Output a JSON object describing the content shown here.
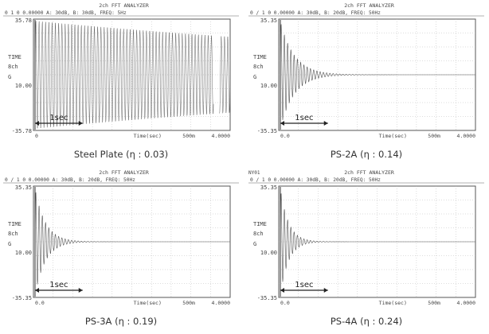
{
  "chart_data": [
    {
      "type": "line",
      "analyzer_title": "2ch FFT ANALYZER",
      "header": "0   1   0 0.00000 A: 30dB, B: 30dB, FREQ:  5Hz",
      "corner_label": "",
      "ytop": "35.78",
      "ybot": "-35.78",
      "ylabel_lines": [
        "TIME",
        "8ch",
        "G",
        "10.00"
      ],
      "xlabel": "Time(sec)",
      "x_start": "0",
      "x_mid": "500m",
      "x_end": "4.0000",
      "scale_bar": "1sec",
      "caption": "Steel Plate (η : 0.03)",
      "eta": 0.03,
      "series": [
        {
          "values": []
        }
      ]
    },
    {
      "type": "line",
      "analyzer_title": "2ch FFT ANALYZER",
      "header": "0 /   1   0 0.00000 A: 30dB, B: 20dB, FREQ:  50Hz",
      "corner_label": "",
      "ytop": "35.35",
      "ybot": "-35.35",
      "ylabel_lines": [
        "TIME",
        "8ch",
        "G",
        "10.00"
      ],
      "xlabel": "Time(sec)",
      "x_start": "0.0",
      "x_mid": "500m",
      "x_end": "4.0000",
      "scale_bar": "1sec",
      "caption": "PS-2A (η : 0.14)",
      "eta": 0.14,
      "series": [
        {
          "values": []
        }
      ]
    },
    {
      "type": "line",
      "analyzer_title": "2ch FFT ANALYZER",
      "header": "0 /   1   0 0.00000 A: 30dB, B: 20dB, FREQ:  50Hz",
      "corner_label": "",
      "ytop": "35.35",
      "ybot": "-35.35",
      "ylabel_lines": [
        "TIME",
        "8ch",
        "G",
        "10.00"
      ],
      "xlabel": "Time(sec)",
      "x_start": "0.0",
      "x_mid": "500m",
      "x_end": "4.0000",
      "scale_bar": "1sec",
      "caption": "PS-3A (η : 0.19)",
      "eta": 0.19,
      "series": [
        {
          "values": []
        }
      ]
    },
    {
      "type": "line",
      "analyzer_title": "2ch FFT ANALYZER",
      "header": "0 /   1   0 0.00000 A: 30dB, B: 20dB, FREQ:  50Hz",
      "corner_label": "NY01",
      "ytop": "35.35",
      "ybot": "-35.35",
      "ylabel_lines": [
        "TIME",
        "8ch",
        "G",
        "10.00"
      ],
      "xlabel": "Time(sec)",
      "x_start": "0.0",
      "x_mid": "500m",
      "x_end": "4.0000",
      "scale_bar": "1sec",
      "caption": "PS-4A (η : 0.24)",
      "eta": 0.24,
      "series": [
        {
          "values": []
        }
      ]
    }
  ]
}
